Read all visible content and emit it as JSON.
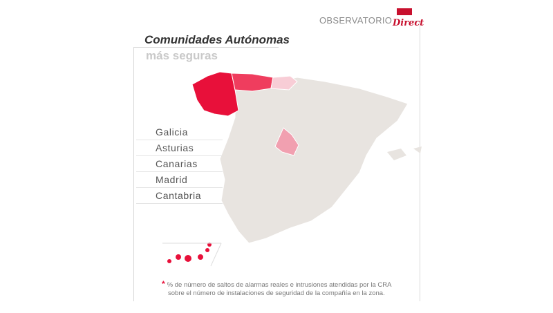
{
  "header": {
    "brand": "OBSERVATORIO",
    "logo_text": "Direct"
  },
  "title": {
    "line1": "Comunidades Autónomas",
    "line2": "más seguras"
  },
  "ranking": [
    {
      "label": "Galicia"
    },
    {
      "label": "Asturias"
    },
    {
      "label": "Canarias"
    },
    {
      "label": "Madrid"
    },
    {
      "label": "Cantabria"
    }
  ],
  "footnote": {
    "marker": "*",
    "line1": "% de número de saltos de alarmas reales e intrusiones atendidas por la CRA",
    "line2": "sobre el número de instalaciones de seguridad de la compañía en la zona."
  },
  "colors": {
    "galicia": "#e8103a",
    "asturias": "#ef3d5e",
    "canarias": "#e8103a",
    "madrid": "#f1a0b0",
    "cantabria": "#f8cdd6",
    "base": "#e8e4e0",
    "accent": "#e8103a"
  }
}
